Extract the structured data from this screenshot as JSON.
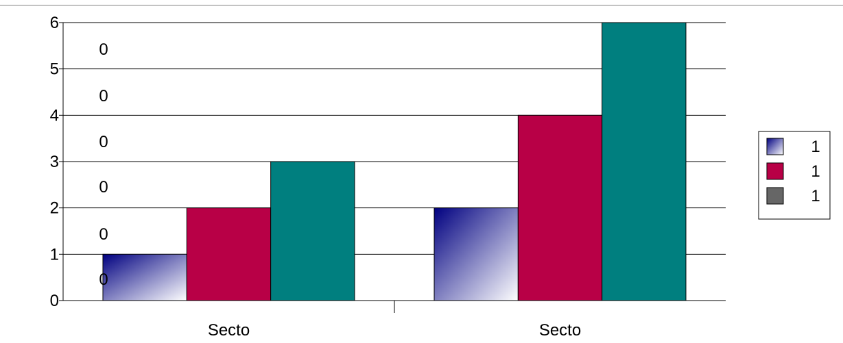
{
  "chart_data": {
    "type": "bar",
    "categories": [
      "Secto",
      "Secto"
    ],
    "series": [
      {
        "values": [
          1,
          2
        ],
        "color": "#000080",
        "fill": "gradient"
      },
      {
        "values": [
          2,
          4
        ],
        "color": "#b80046"
      },
      {
        "values": [
          3,
          6
        ],
        "color": "#007f7f"
      }
    ],
    "ylim": [
      0,
      6
    ],
    "y_ticks": [
      "0",
      "1",
      "2",
      "3",
      "4",
      "5",
      "6"
    ],
    "overlay_labels": [
      "0",
      "0",
      "0",
      "0",
      "0",
      "0"
    ],
    "grid": true,
    "legend": {
      "placement": "right",
      "entries": [
        {
          "label": "1",
          "swatch": "gradient-blue"
        },
        {
          "label": "1",
          "swatch": "#b80046"
        },
        {
          "label": "1",
          "swatch": "#666666"
        }
      ]
    }
  }
}
